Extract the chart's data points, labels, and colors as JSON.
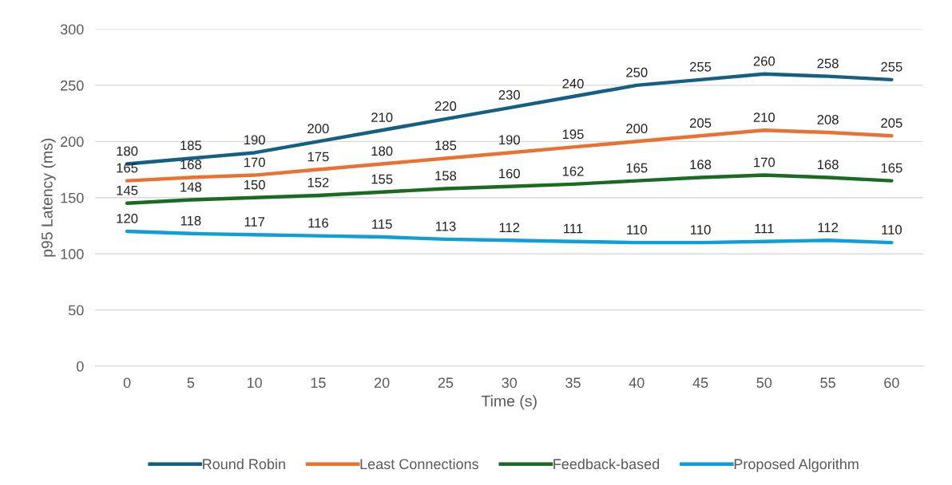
{
  "chart_data": {
    "type": "line",
    "xlabel": "Time (s)",
    "ylabel": "p95 Latency (ms)",
    "categories": [
      "0",
      "5",
      "10",
      "15",
      "20",
      "25",
      "30",
      "35",
      "40",
      "45",
      "50",
      "55",
      "60"
    ],
    "series": [
      {
        "name": "Round Robin",
        "color": "#156082",
        "values": [
          180,
          185,
          190,
          200,
          210,
          220,
          230,
          240,
          250,
          255,
          260,
          258,
          255
        ]
      },
      {
        "name": "Least Connections",
        "color": "#e97132",
        "values": [
          165,
          168,
          170,
          175,
          180,
          185,
          190,
          195,
          200,
          205,
          210,
          208,
          205
        ]
      },
      {
        "name": "Feedback-based",
        "color": "#196b24",
        "values": [
          145,
          148,
          150,
          152,
          155,
          158,
          160,
          162,
          165,
          168,
          170,
          168,
          165
        ]
      },
      {
        "name": "Proposed Algorithm",
        "color": "#0f9ed5",
        "values": [
          120,
          118,
          117,
          116,
          115,
          113,
          112,
          111,
          110,
          110,
          111,
          112,
          110
        ]
      }
    ],
    "ylim": [
      0,
      300
    ],
    "yticks": [
      0,
      50,
      100,
      150,
      200,
      250,
      300
    ],
    "grid": "y",
    "legend": "bottom",
    "data_labels": true,
    "marker": "none",
    "line_style": "solid"
  }
}
